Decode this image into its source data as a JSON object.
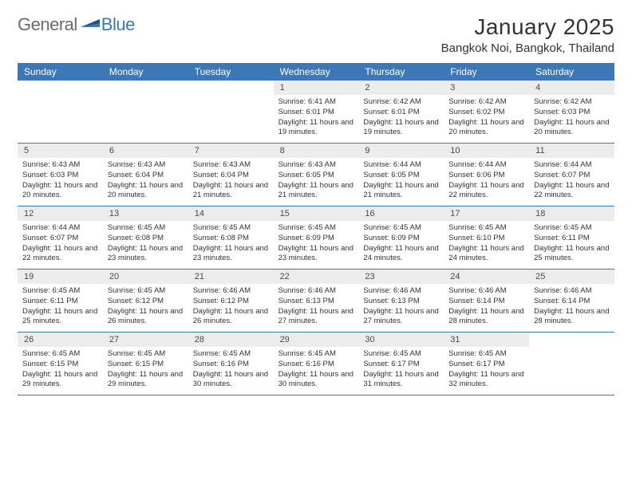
{
  "logo": {
    "general": "General",
    "blue": "Blue"
  },
  "title": "January 2025",
  "location": "Bangkok Noi, Bangkok, Thailand",
  "colors": {
    "header_bg": "#3b78b5",
    "header_text": "#ffffff",
    "daynum_bg": "#ececec",
    "text": "#333333",
    "logo_gray": "#6b6b6b",
    "logo_blue": "#3b78b5"
  },
  "day_names": [
    "Sunday",
    "Monday",
    "Tuesday",
    "Wednesday",
    "Thursday",
    "Friday",
    "Saturday"
  ],
  "weeks": [
    [
      null,
      null,
      null,
      {
        "n": "1",
        "sr": "6:41 AM",
        "ss": "6:01 PM",
        "dl": "11 hours and 19 minutes."
      },
      {
        "n": "2",
        "sr": "6:42 AM",
        "ss": "6:01 PM",
        "dl": "11 hours and 19 minutes."
      },
      {
        "n": "3",
        "sr": "6:42 AM",
        "ss": "6:02 PM",
        "dl": "11 hours and 20 minutes."
      },
      {
        "n": "4",
        "sr": "6:42 AM",
        "ss": "6:03 PM",
        "dl": "11 hours and 20 minutes."
      }
    ],
    [
      {
        "n": "5",
        "sr": "6:43 AM",
        "ss": "6:03 PM",
        "dl": "11 hours and 20 minutes."
      },
      {
        "n": "6",
        "sr": "6:43 AM",
        "ss": "6:04 PM",
        "dl": "11 hours and 20 minutes."
      },
      {
        "n": "7",
        "sr": "6:43 AM",
        "ss": "6:04 PM",
        "dl": "11 hours and 21 minutes."
      },
      {
        "n": "8",
        "sr": "6:43 AM",
        "ss": "6:05 PM",
        "dl": "11 hours and 21 minutes."
      },
      {
        "n": "9",
        "sr": "6:44 AM",
        "ss": "6:05 PM",
        "dl": "11 hours and 21 minutes."
      },
      {
        "n": "10",
        "sr": "6:44 AM",
        "ss": "6:06 PM",
        "dl": "11 hours and 22 minutes."
      },
      {
        "n": "11",
        "sr": "6:44 AM",
        "ss": "6:07 PM",
        "dl": "11 hours and 22 minutes."
      }
    ],
    [
      {
        "n": "12",
        "sr": "6:44 AM",
        "ss": "6:07 PM",
        "dl": "11 hours and 22 minutes."
      },
      {
        "n": "13",
        "sr": "6:45 AM",
        "ss": "6:08 PM",
        "dl": "11 hours and 23 minutes."
      },
      {
        "n": "14",
        "sr": "6:45 AM",
        "ss": "6:08 PM",
        "dl": "11 hours and 23 minutes."
      },
      {
        "n": "15",
        "sr": "6:45 AM",
        "ss": "6:09 PM",
        "dl": "11 hours and 23 minutes."
      },
      {
        "n": "16",
        "sr": "6:45 AM",
        "ss": "6:09 PM",
        "dl": "11 hours and 24 minutes."
      },
      {
        "n": "17",
        "sr": "6:45 AM",
        "ss": "6:10 PM",
        "dl": "11 hours and 24 minutes."
      },
      {
        "n": "18",
        "sr": "6:45 AM",
        "ss": "6:11 PM",
        "dl": "11 hours and 25 minutes."
      }
    ],
    [
      {
        "n": "19",
        "sr": "6:45 AM",
        "ss": "6:11 PM",
        "dl": "11 hours and 25 minutes."
      },
      {
        "n": "20",
        "sr": "6:45 AM",
        "ss": "6:12 PM",
        "dl": "11 hours and 26 minutes."
      },
      {
        "n": "21",
        "sr": "6:46 AM",
        "ss": "6:12 PM",
        "dl": "11 hours and 26 minutes."
      },
      {
        "n": "22",
        "sr": "6:46 AM",
        "ss": "6:13 PM",
        "dl": "11 hours and 27 minutes."
      },
      {
        "n": "23",
        "sr": "6:46 AM",
        "ss": "6:13 PM",
        "dl": "11 hours and 27 minutes."
      },
      {
        "n": "24",
        "sr": "6:46 AM",
        "ss": "6:14 PM",
        "dl": "11 hours and 28 minutes."
      },
      {
        "n": "25",
        "sr": "6:46 AM",
        "ss": "6:14 PM",
        "dl": "11 hours and 28 minutes."
      }
    ],
    [
      {
        "n": "26",
        "sr": "6:45 AM",
        "ss": "6:15 PM",
        "dl": "11 hours and 29 minutes."
      },
      {
        "n": "27",
        "sr": "6:45 AM",
        "ss": "6:15 PM",
        "dl": "11 hours and 29 minutes."
      },
      {
        "n": "28",
        "sr": "6:45 AM",
        "ss": "6:16 PM",
        "dl": "11 hours and 30 minutes."
      },
      {
        "n": "29",
        "sr": "6:45 AM",
        "ss": "6:16 PM",
        "dl": "11 hours and 30 minutes."
      },
      {
        "n": "30",
        "sr": "6:45 AM",
        "ss": "6:17 PM",
        "dl": "11 hours and 31 minutes."
      },
      {
        "n": "31",
        "sr": "6:45 AM",
        "ss": "6:17 PM",
        "dl": "11 hours and 32 minutes."
      },
      null
    ]
  ],
  "labels": {
    "sunrise": "Sunrise:",
    "sunset": "Sunset:",
    "daylight": "Daylight:"
  }
}
